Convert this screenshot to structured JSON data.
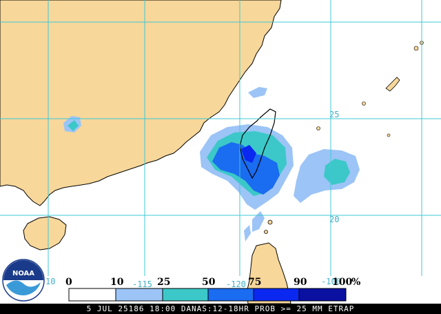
{
  "map": {
    "colors": {
      "land": "#f7d79a",
      "ocean": "#ffffff",
      "grid": "#3ec8d6",
      "coast": "#000000",
      "p10": "#9cc4f6",
      "p25": "#3cc8c8",
      "p50": "#1a6cf0",
      "p75": "#0a28f0",
      "p90": "#0a10a0"
    },
    "grid_labels": {
      "lat_25": "25",
      "lat_20": "20",
      "lon_115": "-115",
      "lon_120": "-120",
      "lon_100": "-100",
      "lon_110": "10"
    }
  },
  "legend": {
    "labels": [
      "0",
      "10",
      "25",
      "50",
      "75",
      "90",
      "100"
    ],
    "percent": "%"
  },
  "footer": {
    "text": "5 JUL 25186 18:00 DANAS:12-18HR PROB >= 25 MM ETRAP"
  },
  "logo": {
    "text": "NOAA",
    "icon": "noaa-logo-icon"
  }
}
